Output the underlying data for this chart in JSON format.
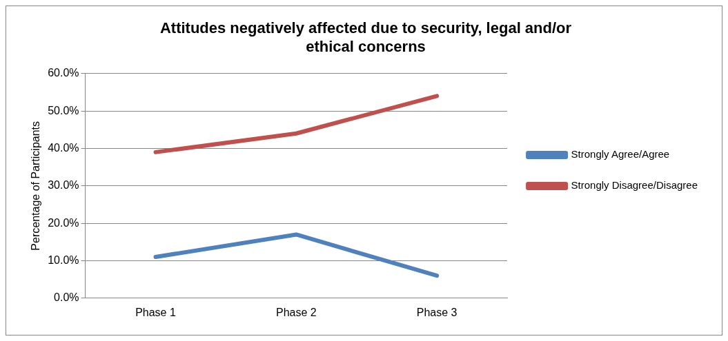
{
  "chart_data": {
    "type": "line",
    "title": "Attitudes negatively affected due to security, legal and/or ethical concerns",
    "ylabel": "Percentage of Participants",
    "categories": [
      "Phase 1",
      "Phase 2",
      "Phase 3"
    ],
    "series": [
      {
        "name": "Strongly Agree/Agree",
        "color": "#4f81bd",
        "values": [
          11,
          17,
          6
        ]
      },
      {
        "name": "Strongly Disagree/Disagree",
        "color": "#c0504d",
        "values": [
          39,
          44,
          54
        ]
      }
    ],
    "ylim": [
      0,
      60
    ],
    "yticks": [
      {
        "value": 0,
        "label": "0.0%"
      },
      {
        "value": 10,
        "label": "10.0%"
      },
      {
        "value": 20,
        "label": "20.0%"
      },
      {
        "value": 30,
        "label": "30.0%"
      },
      {
        "value": 40,
        "label": "40.0%"
      },
      {
        "value": 50,
        "label": "50.0%"
      },
      {
        "value": 60,
        "label": "60.0%"
      }
    ],
    "grid": "y",
    "legend": "right",
    "marker": "none",
    "line_style": "solid"
  }
}
